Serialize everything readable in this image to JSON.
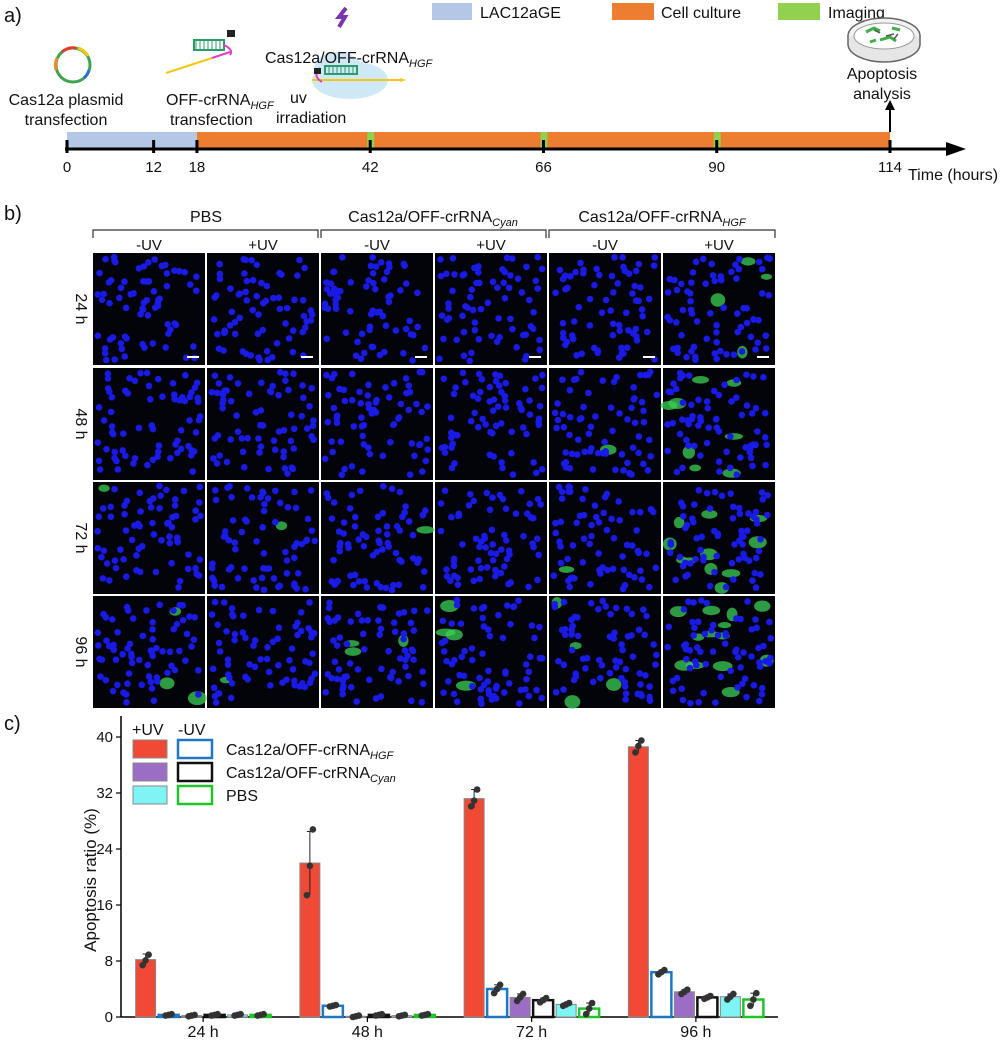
{
  "panel_a": {
    "label": "a)",
    "legend": [
      {
        "label": "LAC12aGE",
        "color": "#b4c7e7"
      },
      {
        "label": "Cell culture",
        "color": "#ed7d31"
      },
      {
        "label": "Imaging",
        "color": "#92d050"
      }
    ],
    "steps": {
      "plasmid_1": "Cas12a plasmid",
      "plasmid_2": "transfection",
      "crrna_main": "OFF-crRNA",
      "crrna_sub": "HGF",
      "crrna_2": "transfection",
      "uv_1": "uv",
      "uv_2": "irradiation",
      "complex_main": "Cas12a/OFF-crRNA",
      "complex_sub": "HGF",
      "apoptosis_1": "Apoptosis",
      "apoptosis_2": "analysis"
    },
    "ticks": [
      "0",
      "12",
      "18",
      "42",
      "66",
      "90",
      "114"
    ],
    "tick_hours": [
      0,
      12,
      18,
      42,
      66,
      90,
      114
    ],
    "lac_end_hour": 18,
    "culture_end_hour": 114,
    "imaging_hours": [
      42,
      66,
      90
    ],
    "axis_label": "Time (hours)"
  },
  "panel_b": {
    "label": "b)",
    "groups": [
      {
        "main": "PBS",
        "sub": ""
      },
      {
        "main": "Cas12a/OFF-crRNA",
        "sub": "Cyan"
      },
      {
        "main": "Cas12a/OFF-crRNA",
        "sub": "HGF"
      }
    ],
    "conditions": [
      "-UV",
      "+UV",
      "-UV",
      "+UV",
      "-UV",
      "+UV"
    ],
    "rows": [
      "24 h",
      "48 h",
      "72 h",
      "96 h"
    ],
    "green_level": [
      [
        0.0,
        0.0,
        0.0,
        0.0,
        0.0,
        0.25
      ],
      [
        0.0,
        0.0,
        0.0,
        0.0,
        0.1,
        0.55
      ],
      [
        0.05,
        0.1,
        0.05,
        0.03,
        0.1,
        0.8
      ],
      [
        0.2,
        0.1,
        0.2,
        0.25,
        0.3,
        0.9
      ]
    ]
  },
  "panel_c": {
    "label": "c)",
    "legend_header_plus": "+UV",
    "legend_header_minus": "-UV",
    "legend": [
      {
        "main": "Cas12a/OFF-crRNA",
        "sub": "HGF",
        "fill": "#f04a36",
        "edge": "#1f77c4"
      },
      {
        "main": "Cas12a/OFF-crRNA",
        "sub": "Cyan",
        "fill": "#9b6dc4",
        "edge": "#111111"
      },
      {
        "main": "PBS",
        "sub": "",
        "fill": "#7ff4f4",
        "edge": "#22c32a"
      }
    ]
  },
  "chart_data": {
    "type": "bar",
    "ylabel": "Apoptosis ratio (%)",
    "xlabel": "",
    "ylim": [
      0,
      43
    ],
    "yticks": [
      "0",
      "8",
      "16",
      "24",
      "32",
      "40"
    ],
    "ytick_values": [
      0,
      8,
      16,
      24,
      32,
      40
    ],
    "categories": [
      "24 h",
      "48 h",
      "72 h",
      "96 h"
    ],
    "series": [
      {
        "name": "Cas12a/OFF-crRNA HGF +UV",
        "fill": "#f04a36",
        "stroke": "#888888",
        "values": [
          8.2,
          22.0,
          31.2,
          38.6
        ],
        "err": [
          0.8,
          4.5,
          1.3,
          0.9
        ],
        "points": [
          [
            7.4,
            8.1,
            8.9
          ],
          [
            17.4,
            21.6,
            26.8
          ],
          [
            30.1,
            30.9,
            32.5
          ],
          [
            37.8,
            38.7,
            39.5
          ]
        ]
      },
      {
        "name": "Cas12a/OFF-crRNA HGF -UV",
        "fill": "#ffffff",
        "stroke": "#1f77c4",
        "values": [
          0.3,
          1.6,
          4.0,
          6.4
        ],
        "err": [
          0.1,
          0.1,
          0.6,
          0.3
        ],
        "points": [
          [
            0.2,
            0.3,
            0.4
          ],
          [
            1.5,
            1.6,
            1.7
          ],
          [
            3.4,
            4.0,
            4.6
          ],
          [
            6.1,
            6.4,
            6.7
          ]
        ]
      },
      {
        "name": "Cas12a/OFF-crRNA Cyan +UV",
        "fill": "#9b6dc4",
        "stroke": "#888888",
        "values": [
          0.2,
          0.1,
          2.8,
          3.6
        ],
        "err": [
          0.1,
          0.1,
          0.5,
          0.3
        ],
        "points": [
          [
            0.1,
            0.2,
            0.3
          ],
          [
            0.0,
            0.1,
            0.2
          ],
          [
            2.3,
            2.8,
            3.3
          ],
          [
            3.3,
            3.6,
            3.9
          ]
        ]
      },
      {
        "name": "Cas12a/OFF-crRNA Cyan -UV",
        "fill": "#ffffff",
        "stroke": "#111111",
        "values": [
          0.3,
          0.3,
          2.4,
          2.8
        ],
        "err": [
          0.1,
          0.1,
          0.3,
          0.2
        ],
        "points": [
          [
            0.2,
            0.3,
            0.4
          ],
          [
            0.2,
            0.3,
            0.4
          ],
          [
            2.1,
            2.4,
            2.7
          ],
          [
            2.6,
            2.8,
            3.0
          ]
        ]
      },
      {
        "name": "PBS +UV",
        "fill": "#7ff4f4",
        "stroke": "#888888",
        "values": [
          0.3,
          0.2,
          1.8,
          2.9
        ],
        "err": [
          0.1,
          0.1,
          0.2,
          0.4
        ],
        "points": [
          [
            0.2,
            0.3,
            0.4
          ],
          [
            0.1,
            0.2,
            0.3
          ],
          [
            1.6,
            1.8,
            2.0
          ],
          [
            2.5,
            2.9,
            3.3
          ]
        ]
      },
      {
        "name": "PBS -UV",
        "fill": "#ffffff",
        "stroke": "#22c32a",
        "values": [
          0.3,
          0.3,
          1.2,
          2.5
        ],
        "err": [
          0.1,
          0.1,
          0.8,
          0.9
        ],
        "points": [
          [
            0.2,
            0.3,
            0.4
          ],
          [
            0.2,
            0.3,
            0.4
          ],
          [
            0.4,
            1.2,
            2.0
          ],
          [
            1.6,
            2.5,
            3.4
          ]
        ]
      }
    ]
  }
}
